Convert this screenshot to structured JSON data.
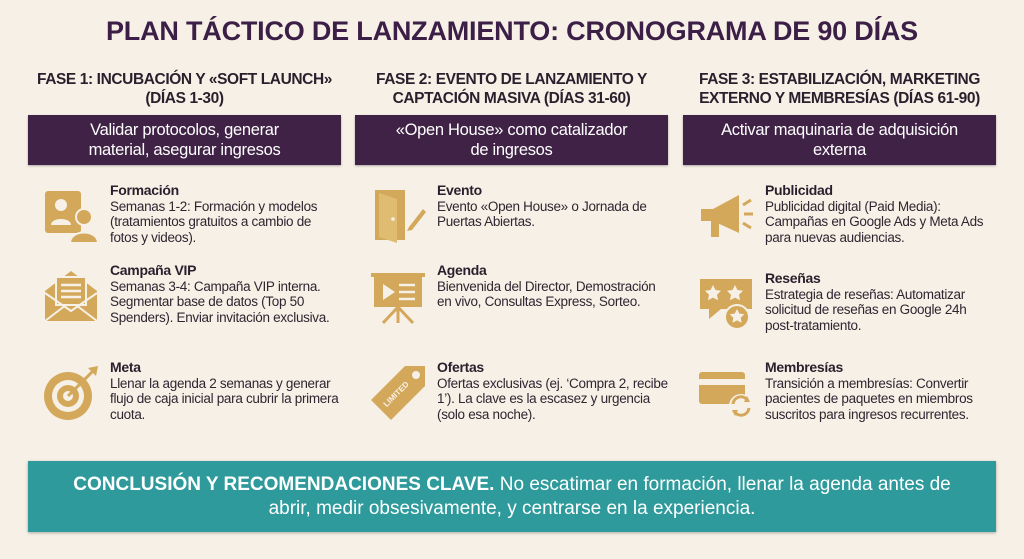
{
  "title": "PLAN TÁCTICO DE LANZAMIENTO: CRONOGRAMA DE 90 DÍAS",
  "colors": {
    "purple": "#3f2246",
    "gold": "#d4a85a",
    "teal": "#2e9a9b",
    "background": "#f7f0e7"
  },
  "phases": [
    {
      "header": "FASE 1: INCUBACIÓN Y «SOFT LAUNCH» (DÍAS 1-30)",
      "objective": "Validar protocolos, generar material, asegurar ingresos",
      "items": [
        {
          "icon": "trainer-person-icon",
          "title": "Formación",
          "text": "Semanas 1-2: Formación y modelos (tratamientos gratuitos a cambio de fotos y videos)."
        },
        {
          "icon": "envelope-letter-icon",
          "title": "Campaña VIP",
          "text": "Semanas 3-4: Campaña VIP interna. Segmentar base de datos (Top 50 Spenders). Enviar invitación exclusiva."
        },
        {
          "icon": "target-arrow-icon",
          "title": "Meta",
          "text": "Llenar la agenda 2 semanas y generar flujo de caja inicial para cubrir la primera cuota."
        }
      ]
    },
    {
      "header": "FASE 2: EVENTO DE LANZAMIENTO Y CAPTACIÓN MASIVA (DÍAS 31-60)",
      "objective": "«Open House» como catalizador de ingresos",
      "items": [
        {
          "icon": "open-door-icon",
          "title": "Evento",
          "text": "Evento «Open House» o Jornada de Puertas Abiertas."
        },
        {
          "icon": "presentation-board-icon",
          "title": "Agenda",
          "text": "Bienvenida del Director, Demostración en vivo, Consultas Express, Sorteo."
        },
        {
          "icon": "limited-tag-icon",
          "title": "Ofertas",
          "text": "Ofertas exclusivas (ej. ‘Compra 2, recibe 1’). La clave es la escasez y urgencia (solo esa noche).",
          "tag": "LIMITED"
        }
      ]
    },
    {
      "header": "FASE 3: ESTABILIZACIÓN, MARKETING EXTERNO Y MEMBRESÍAS (DÍAS 61-90)",
      "objective": "Activar maquinaria de adquisición externa",
      "items": [
        {
          "icon": "megaphone-icon",
          "title": "Publicidad",
          "text": "Publicidad digital (Paid Media): Campañas en Google Ads y Meta Ads para nuevas audiencias."
        },
        {
          "icon": "review-stars-icon",
          "title": "Reseñas",
          "text": "Estrategia de reseñas: Automatizar solicitud de reseñas en Google 24h post-tratamiento."
        },
        {
          "icon": "card-recurring-icon",
          "title": "Membresías",
          "text": "Transición a membresías: Convertir pacientes de paquetes en miembros suscritos para ingresos recurrentes."
        }
      ]
    }
  ],
  "conclusion": {
    "lead": "CONCLUSIÓN Y RECOMENDACIONES CLAVE.",
    "text": " No escatimar en formación, llenar la agenda antes de abrir, medir obsesivamente, y centrarse en la experiencia."
  }
}
